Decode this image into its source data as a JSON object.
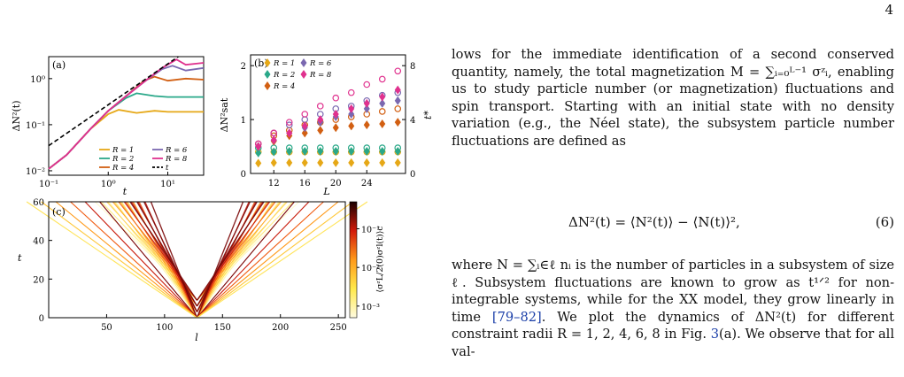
{
  "page_number": "4",
  "figure": {
    "panel_a": {
      "label": "(a)",
      "ylabel": "ΔN²(t)",
      "xlabel": "t",
      "yticks": [
        "10⁰",
        "10⁻¹",
        "10⁻²"
      ],
      "xticks": [
        "10⁻¹",
        "10⁰",
        "10¹"
      ],
      "legend": [
        {
          "label": "R = 1",
          "color": "#e6a817"
        },
        {
          "label": "R = 2",
          "color": "#2aa889"
        },
        {
          "label": "R = 4",
          "color": "#d25f12"
        },
        {
          "label": "R = 6",
          "color": "#7a68b0"
        },
        {
          "label": "R = 8",
          "color": "#e0318e"
        },
        {
          "label": "t",
          "color": "#000000"
        }
      ]
    },
    "panel_b": {
      "label": "(b)",
      "ylabel": "ΔN²sat",
      "ylabel_right": "t*",
      "xlabel": "L",
      "yticks_left": [
        "2",
        "1",
        "0"
      ],
      "yticks_right": [
        "8",
        "4",
        "0"
      ],
      "xticks": [
        "12",
        "16",
        "20",
        "24"
      ],
      "legend": [
        {
          "label": "R = 1",
          "color": "#e6a817"
        },
        {
          "label": "R = 6",
          "color": "#7a68b0"
        },
        {
          "label": "R = 2",
          "color": "#2aa889"
        },
        {
          "label": "R = 8",
          "color": "#e0318e"
        },
        {
          "label": "R = 4",
          "color": "#d25f12"
        }
      ]
    },
    "panel_c": {
      "label": "(c)",
      "ylabel": "t",
      "xlabel": "l",
      "yticks": [
        "60",
        "40",
        "20",
        "0"
      ],
      "xticks": [
        "50",
        "100",
        "150",
        "200",
        "250"
      ],
      "colorbar_ticks": [
        "10⁻¹",
        "10⁻²",
        "10⁻³"
      ],
      "colorbar_label": "⟨σᶻL/2(0)σᶻl(t)⟩c"
    }
  },
  "text": {
    "para1": "lows for the immediate identification of a second conserved quantity, namely, the total magnetization M = ∑ᵢ₌₀ᴸ⁻¹ σᶻᵢ, enabling us to study particle number (or magnetization) fluctuations and spin transport. Starting with an initial state with no density variation (e.g., the Néel state), the subsystem particle number fluctuations are defined as",
    "equation": "ΔN²(t) = ⟨N²(t)⟩ − ⟨N(t)⟩²,",
    "equation_number": "(6)",
    "para2_a": "where N = ∑ᵢ∈ℓ nᵢ is the number of particles in a subsystem of size ℓ. Subsystem fluctuations are known to grow as t¹ᐟ² for non-integrable systems, while for the XX model, they grow linearly in time ",
    "para2_cite": "[79–82]",
    "para2_b": ". We plot the dynamics of ΔN²(t) for different constraint radii R = 1, 2, 4, 6, 8 in Fig. ",
    "para2_fig": "3",
    "para2_c": "(a). We observe that for all val-"
  },
  "chart_data": [
    {
      "type": "line",
      "panel": "(a)",
      "xlabel": "t",
      "ylabel": "ΔN²(t)",
      "xscale": "log",
      "yscale": "log",
      "xlim": [
        0.1,
        40
      ],
      "ylim": [
        0.008,
        3
      ],
      "series": [
        {
          "name": "R = 1",
          "x": [
            0.1,
            0.2,
            0.5,
            1,
            1.5,
            3,
            6,
            10,
            20,
            40
          ],
          "y": [
            0.011,
            0.022,
            0.08,
            0.17,
            0.21,
            0.18,
            0.2,
            0.19,
            0.19,
            0.19
          ]
        },
        {
          "name": "R = 2",
          "x": [
            0.1,
            0.2,
            0.5,
            1,
            2,
            3,
            6,
            10,
            20,
            40
          ],
          "y": [
            0.011,
            0.022,
            0.08,
            0.2,
            0.38,
            0.48,
            0.42,
            0.4,
            0.4,
            0.4
          ]
        },
        {
          "name": "R = 4",
          "x": [
            0.1,
            0.2,
            0.5,
            1,
            2,
            4,
            6,
            10,
            20,
            40
          ],
          "y": [
            0.011,
            0.022,
            0.08,
            0.2,
            0.42,
            0.9,
            1.1,
            0.9,
            1.0,
            0.95
          ]
        },
        {
          "name": "R = 6",
          "x": [
            0.1,
            0.2,
            0.5,
            1,
            2,
            4,
            8,
            12,
            20,
            40
          ],
          "y": [
            0.011,
            0.022,
            0.08,
            0.2,
            0.42,
            0.85,
            1.6,
            1.9,
            1.5,
            1.7
          ]
        },
        {
          "name": "R = 8",
          "x": [
            0.1,
            0.2,
            0.5,
            1,
            2,
            4,
            8,
            14,
            20,
            40
          ],
          "y": [
            0.011,
            0.022,
            0.08,
            0.2,
            0.42,
            0.85,
            1.7,
            2.6,
            2.0,
            2.2
          ]
        },
        {
          "name": "t",
          "x": [
            0.1,
            15
          ],
          "y": [
            0.035,
            3.0
          ]
        }
      ]
    },
    {
      "type": "scatter",
      "panel": "(b)",
      "xlabel": "L",
      "ylabel": "ΔN²sat",
      "ylabel_right": "t*",
      "xlim": [
        9,
        29
      ],
      "ylim": [
        0,
        2.2
      ],
      "ylim_right": [
        0,
        8.8
      ],
      "x": [
        10,
        12,
        14,
        16,
        18,
        20,
        22,
        24,
        26,
        28
      ],
      "series": [
        {
          "name": "R = 1",
          "values": [
            0.19,
            0.2,
            0.2,
            0.2,
            0.2,
            0.2,
            0.2,
            0.2,
            0.2,
            0.2
          ],
          "t_star": [
            1.6,
            1.6,
            1.6,
            1.6,
            1.6,
            1.6,
            1.6,
            1.6,
            1.6,
            1.6
          ]
        },
        {
          "name": "R = 2",
          "values": [
            0.38,
            0.4,
            0.41,
            0.41,
            0.41,
            0.41,
            0.41,
            0.41,
            0.41,
            0.41
          ],
          "t_star": [
            1.9,
            1.9,
            1.9,
            1.9,
            1.9,
            1.9,
            1.9,
            1.9,
            1.9,
            1.9
          ]
        },
        {
          "name": "R = 4",
          "values": [
            0.5,
            0.6,
            0.7,
            0.75,
            0.8,
            0.85,
            0.88,
            0.9,
            0.92,
            0.95
          ],
          "t_star": [
            2.2,
            2.8,
            3.2,
            3.6,
            3.8,
            4.0,
            4.2,
            4.4,
            4.6,
            4.8
          ]
        },
        {
          "name": "R = 6",
          "values": [
            0.5,
            0.62,
            0.75,
            0.85,
            0.95,
            1.05,
            1.1,
            1.2,
            1.3,
            1.35
          ],
          "t_star": [
            2.2,
            3.0,
            3.6,
            4.0,
            4.4,
            4.8,
            5.0,
            5.4,
            5.8,
            6.0
          ]
        },
        {
          "name": "R = 8",
          "values": [
            0.5,
            0.62,
            0.75,
            0.88,
            1.0,
            1.1,
            1.2,
            1.3,
            1.42,
            1.55
          ],
          "t_star": [
            2.2,
            3.0,
            3.8,
            4.4,
            5.0,
            5.6,
            6.0,
            6.6,
            7.0,
            7.6
          ]
        }
      ]
    },
    {
      "type": "heatmap",
      "panel": "(c)",
      "xlabel": "l",
      "ylabel": "t",
      "xlim": [
        0,
        256
      ],
      "ylim": [
        0,
        60
      ],
      "light_cone_origin": 128,
      "colorscale": "hot_r",
      "cscale": "log",
      "clim": [
        0.0005,
        0.5
      ]
    }
  ]
}
